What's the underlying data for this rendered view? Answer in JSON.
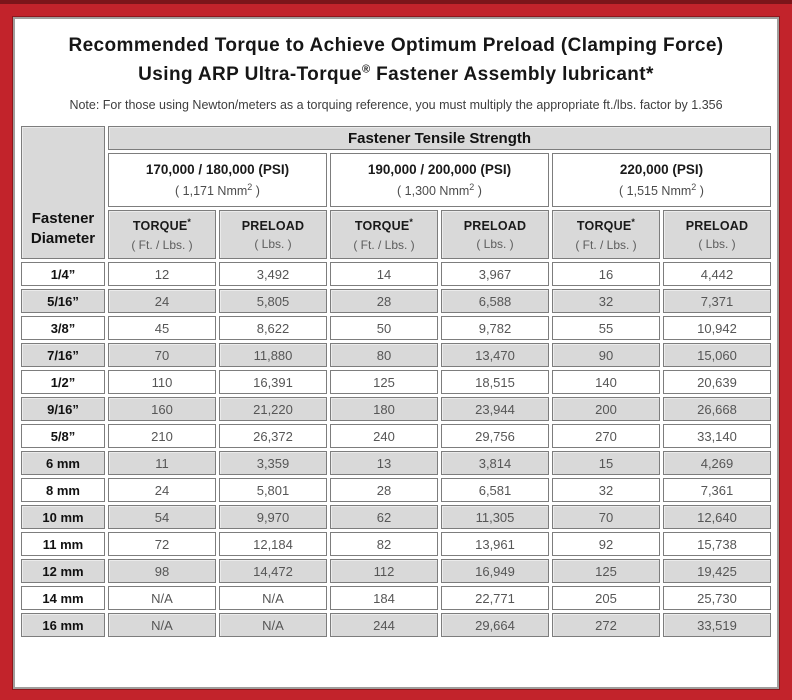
{
  "colors": {
    "frame_red": "#c2232b",
    "frame_dark_edge": "#7c151a",
    "cell_gray": "#d9d9d9",
    "grid_border": "#7d7d7d"
  },
  "header": {
    "title_line1": "Recommended Torque to Achieve Optimum Preload (Clamping Force)",
    "title_line2_pre": "Using ARP Ultra-Torque",
    "title_line2_sup": "®",
    "title_line2_post": " Fastener Assembly lubricant*",
    "note": "Note: For those using Newton/meters as a torquing reference, you must multiply the appropriate ft./lbs. factor by 1.356"
  },
  "table": {
    "corner_line1": "Fastener",
    "corner_line2": "Diameter",
    "tensile_header": "Fastener Tensile Strength",
    "strength_groups": [
      {
        "psi": "170,000 / 180,000 (PSI)",
        "nmm_pre": "( 1,171 Nmm",
        "nmm_sup": "2",
        "nmm_post": " )"
      },
      {
        "psi": "190,000 / 200,000 (PSI)",
        "nmm_pre": "( 1,300 Nmm",
        "nmm_sup": "2",
        "nmm_post": " )"
      },
      {
        "psi": "220,000 (PSI)",
        "nmm_pre": "( 1,515 Nmm",
        "nmm_sup": "2",
        "nmm_post": " )"
      }
    ],
    "sub_headers": {
      "torque_label": "TORQUE",
      "torque_sup": "*",
      "torque_unit": "( Ft. / Lbs. )",
      "preload_label": "PRELOAD",
      "preload_unit": "( Lbs. )"
    },
    "rows": [
      {
        "diameter": "1/4”",
        "values": [
          "12",
          "3,492",
          "14",
          "3,967",
          "16",
          "4,442"
        ]
      },
      {
        "diameter": "5/16”",
        "values": [
          "24",
          "5,805",
          "28",
          "6,588",
          "32",
          "7,371"
        ]
      },
      {
        "diameter": "3/8”",
        "values": [
          "45",
          "8,622",
          "50",
          "9,782",
          "55",
          "10,942"
        ]
      },
      {
        "diameter": "7/16”",
        "values": [
          "70",
          "11,880",
          "80",
          "13,470",
          "90",
          "15,060"
        ]
      },
      {
        "diameter": "1/2”",
        "values": [
          "110",
          "16,391",
          "125",
          "18,515",
          "140",
          "20,639"
        ]
      },
      {
        "diameter": "9/16”",
        "values": [
          "160",
          "21,220",
          "180",
          "23,944",
          "200",
          "26,668"
        ]
      },
      {
        "diameter": "5/8”",
        "values": [
          "210",
          "26,372",
          "240",
          "29,756",
          "270",
          "33,140"
        ]
      },
      {
        "diameter": "6 mm",
        "values": [
          "11",
          "3,359",
          "13",
          "3,814",
          "15",
          "4,269"
        ]
      },
      {
        "diameter": "8 mm",
        "values": [
          "24",
          "5,801",
          "28",
          "6,581",
          "32",
          "7,361"
        ]
      },
      {
        "diameter": "10 mm",
        "values": [
          "54",
          "9,970",
          "62",
          "11,305",
          "70",
          "12,640"
        ]
      },
      {
        "diameter": "11 mm",
        "values": [
          "72",
          "12,184",
          "82",
          "13,961",
          "92",
          "15,738"
        ]
      },
      {
        "diameter": "12 mm",
        "values": [
          "98",
          "14,472",
          "112",
          "16,949",
          "125",
          "19,425"
        ]
      },
      {
        "diameter": "14 mm",
        "values": [
          "N/A",
          "N/A",
          "184",
          "22,771",
          "205",
          "25,730"
        ]
      },
      {
        "diameter": "16 mm",
        "values": [
          "N/A",
          "N/A",
          "244",
          "29,664",
          "272",
          "33,519"
        ]
      }
    ]
  }
}
